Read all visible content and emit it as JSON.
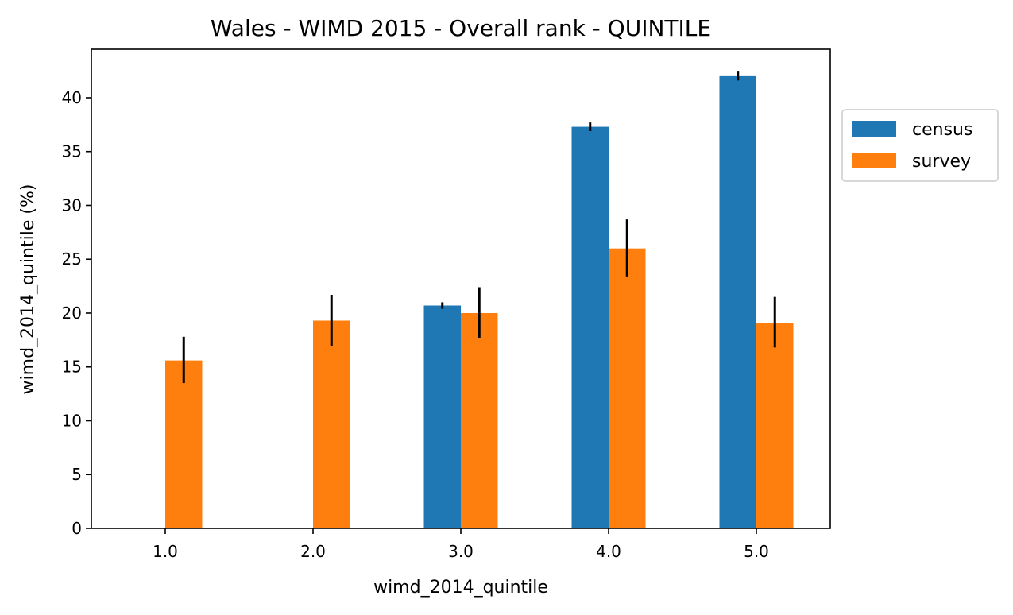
{
  "chart_data": {
    "type": "bar",
    "title": "Wales - WIMD 2015 - Overall rank - QUINTILE",
    "xlabel": "wimd_2014_quintile",
    "ylabel": "wimd_2014_quintile (%)",
    "categories": [
      "1.0",
      "2.0",
      "3.0",
      "4.0",
      "5.0"
    ],
    "ylim": [
      0,
      44.5
    ],
    "yticks": [
      0,
      5,
      10,
      15,
      20,
      25,
      30,
      35,
      40
    ],
    "grid": false,
    "legend_position": "outside-right-top",
    "series": [
      {
        "name": "census",
        "color": "#1f77b4",
        "values": [
          null,
          null,
          20.7,
          37.3,
          42.0
        ],
        "err_low": [
          null,
          null,
          20.4,
          36.9,
          41.6
        ],
        "err_high": [
          null,
          null,
          21.0,
          37.7,
          42.5
        ]
      },
      {
        "name": "survey",
        "color": "#ff7f0e",
        "values": [
          15.6,
          19.3,
          20.0,
          26.0,
          19.1
        ],
        "err_low": [
          13.5,
          16.9,
          17.7,
          23.4,
          16.8
        ],
        "err_high": [
          17.8,
          21.7,
          22.4,
          28.7,
          21.5
        ]
      }
    ]
  }
}
